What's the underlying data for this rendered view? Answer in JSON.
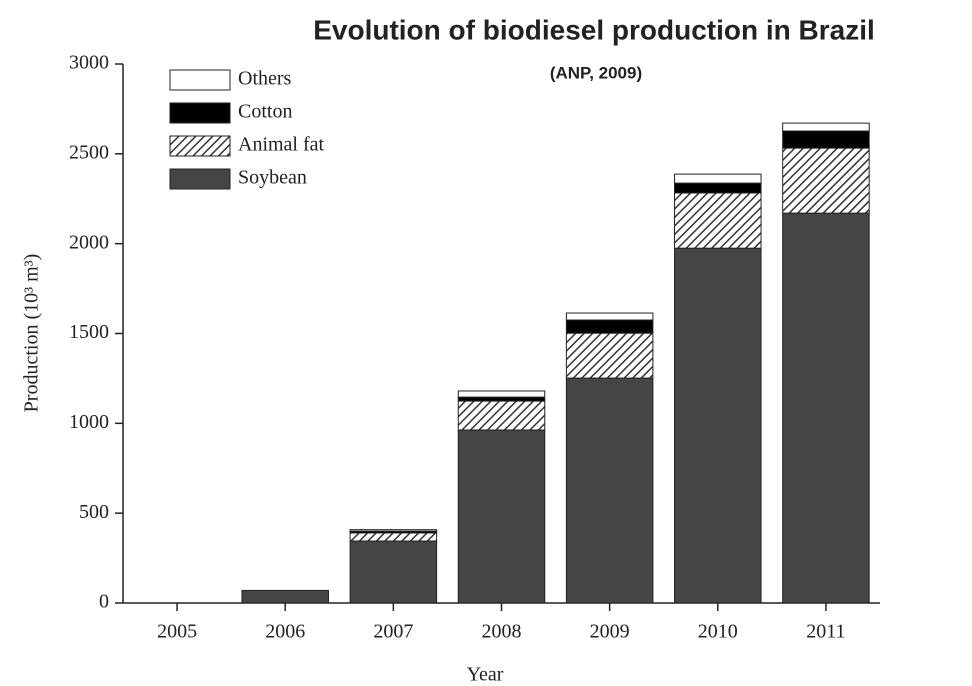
{
  "chart_data": {
    "type": "stacked_bar",
    "title": "Evolution of biodiesel production in Brazil",
    "subtitle": "(ANP, 2009)",
    "x_label": "Year",
    "y_label": "Production (10³ m³)",
    "categories": [
      "2005",
      "2006",
      "2007",
      "2008",
      "2009",
      "2010",
      "2011"
    ],
    "series": [
      {
        "name": "Soybean",
        "color": "#454545",
        "values": [
          0,
          70,
          345,
          963,
          1252,
          1975,
          2170
        ]
      },
      {
        "name": "Animal fat",
        "color": "#333333",
        "pattern": "hatch",
        "values": [
          0,
          0,
          45,
          161,
          250,
          307,
          362
        ]
      },
      {
        "name": "Cotton",
        "color": "#000000",
        "values": [
          0,
          0,
          10,
          22,
          73,
          55,
          95
        ]
      },
      {
        "name": "Others",
        "color": "#ffffff",
        "values": [
          0,
          0,
          8,
          34,
          39,
          50,
          44
        ]
      }
    ],
    "ylim": [
      0,
      3000
    ],
    "yticks": [
      0,
      500,
      1000,
      1500,
      2000,
      2500,
      3000
    ],
    "legend": "upper left"
  }
}
